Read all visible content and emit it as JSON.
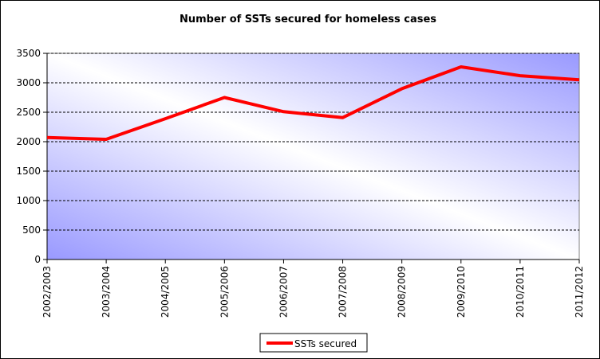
{
  "chart_data": {
    "type": "line",
    "title": "Number of SSTs secured for homeless cases",
    "xlabel": "",
    "ylabel": "",
    "categories": [
      "2002/2003",
      "2003/2004",
      "2004/2005",
      "2005/2006",
      "2006/2007",
      "2007/2008",
      "2008/2009",
      "2009/2010",
      "2010/2011",
      "2011/2012"
    ],
    "series": [
      {
        "name": "SSTs secured",
        "color": "#ff0000",
        "values": [
          2070,
          2040,
          2390,
          2750,
          2510,
          2410,
          2900,
          3270,
          3120,
          3050
        ]
      }
    ],
    "ylim": [
      0,
      3500
    ],
    "yticks": [
      "0",
      "500",
      "1000",
      "1500",
      "2000",
      "2500",
      "3000",
      "3500"
    ],
    "grid": "horizontal dashed",
    "legend": "bottom-center",
    "plot_gradient": [
      "#9999ff",
      "#ffffff"
    ]
  }
}
